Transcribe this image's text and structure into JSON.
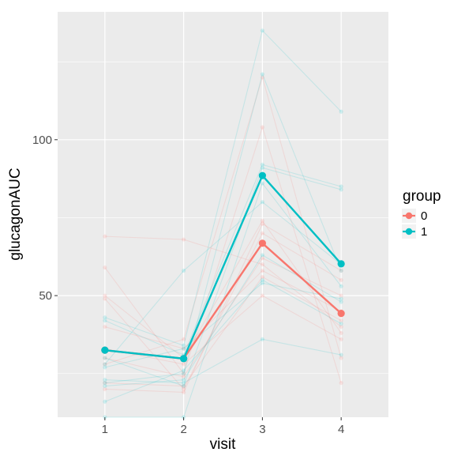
{
  "chart_data": {
    "type": "line",
    "xlabel": "visit",
    "ylabel": "glucagonAUC",
    "x": [
      1,
      2,
      3,
      4
    ],
    "xlim": [
      0.4,
      4.6
    ],
    "ylim": [
      11,
      141
    ],
    "y_ticks": [
      50,
      100
    ],
    "x_ticks": [
      1,
      2,
      3,
      4
    ],
    "grid": true,
    "legend": {
      "title": "group",
      "position": "right",
      "entries": [
        {
          "label": "0",
          "color": "#F8766D"
        },
        {
          "label": "1",
          "color": "#00BFC4"
        }
      ]
    },
    "series": [
      {
        "name": "0",
        "color": "#F8766D",
        "values": [
          32.5,
          29.8,
          66.8,
          44.3
        ]
      },
      {
        "name": "1",
        "color": "#00BFC4",
        "values": [
          32.5,
          29.8,
          88.5,
          60.2
        ]
      }
    ],
    "individuals": [
      {
        "group": "0",
        "values": [
          69,
          68,
          60,
          40
        ]
      },
      {
        "group": "0",
        "values": [
          59,
          25,
          104,
          22
        ]
      },
      {
        "group": "0",
        "values": [
          50,
          30,
          74,
          38
        ]
      },
      {
        "group": "0",
        "values": [
          49,
          20,
          70,
          55
        ]
      },
      {
        "group": "0",
        "values": [
          40,
          33,
          58,
          45
        ]
      },
      {
        "group": "0",
        "values": [
          33,
          28,
          50,
          36
        ]
      },
      {
        "group": "0",
        "values": [
          30,
          24,
          62,
          50
        ]
      },
      {
        "group": "0",
        "values": [
          28,
          36,
          120,
          30
        ]
      },
      {
        "group": "0",
        "values": [
          22,
          21,
          56,
          42
        ]
      },
      {
        "group": "0",
        "values": [
          20,
          19,
          73,
          58
        ]
      },
      {
        "group": "1",
        "values": [
          43,
          34,
          135,
          109
        ]
      },
      {
        "group": "1",
        "values": [
          42,
          31,
          92,
          85
        ]
      },
      {
        "group": "1",
        "values": [
          30,
          21,
          91,
          84
        ]
      },
      {
        "group": "1",
        "values": [
          28,
          58,
          80,
          60
        ]
      },
      {
        "group": "1",
        "values": [
          23,
          22,
          36,
          31
        ]
      },
      {
        "group": "1",
        "values": [
          22,
          25,
          121,
          58
        ]
      },
      {
        "group": "1",
        "values": [
          21,
          23,
          63,
          48
        ]
      },
      {
        "group": "1",
        "values": [
          16,
          26,
          55,
          41
        ]
      },
      {
        "group": "1",
        "values": [
          11,
          11,
          86,
          53
        ]
      },
      {
        "group": "1",
        "values": [
          27,
          33,
          54,
          49
        ]
      }
    ]
  }
}
